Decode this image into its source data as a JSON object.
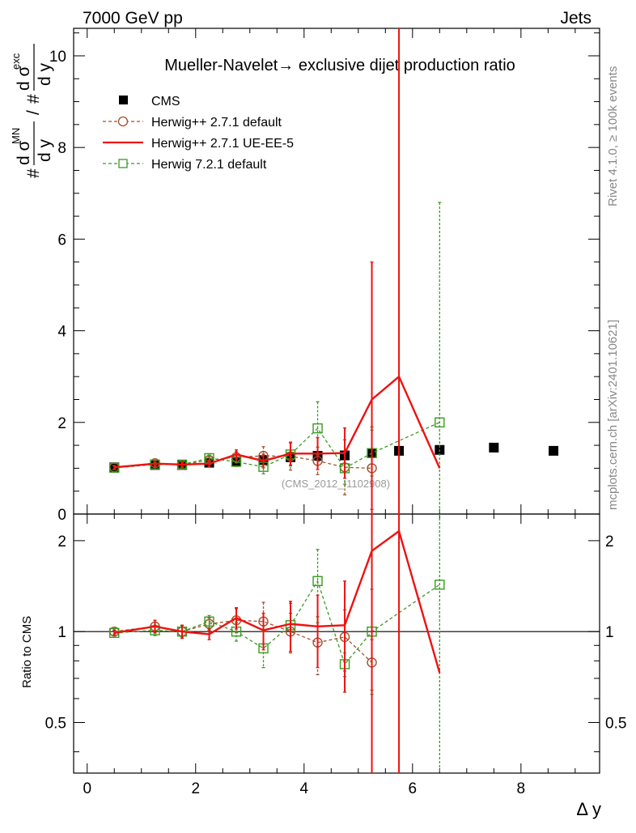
{
  "header": {
    "left": "7000 GeV pp",
    "right": "Jets"
  },
  "side_labels": {
    "rivet": "Rivet 4.1.0, ≥ 100k events",
    "mcplots": "mcplots.cern.ch [arXiv:2401.10621]"
  },
  "watermark": "(CMS_2012_I1102908)",
  "chart_data": {
    "type": "line",
    "title": "Mueller-Navelet→ exclusive dijet production ratio",
    "xlabel": "Δ y",
    "ylabel": {
      "prefix": "#",
      "mn_sup": "MN",
      "exc_sup": "exc",
      "numer": "d σ",
      "denom": "d y",
      "slash": "/"
    },
    "ratio_ylabel": "Ratio to CMS",
    "xlim": [
      -0.25,
      9.45
    ],
    "ylim": [
      0,
      10.6
    ],
    "ratio_ylim": [
      0.34,
      2.45
    ],
    "x_ticks": [
      "0",
      "2",
      "4",
      "6",
      "8"
    ],
    "y_ticks": [
      "0",
      "2",
      "4",
      "6",
      "8",
      "10"
    ],
    "ratio_ticks": [
      "0.5",
      "1",
      "2"
    ],
    "colors": {
      "cms": "#000000",
      "herwig271": "#a0522d",
      "ueee5": "#ee1111",
      "herwig721": "#3a9b1f"
    },
    "legend": [
      "CMS",
      "Herwig++ 2.7.1 default",
      "Herwig++ 2.7.1 UE-EE-5",
      "Herwig 7.2.1 default"
    ],
    "series": [
      {
        "name": "CMS",
        "style": "square",
        "x": [
          0.5,
          1.25,
          1.75,
          2.25,
          2.75,
          3.25,
          3.75,
          4.25,
          4.75,
          5.25,
          5.75,
          6.5,
          7.5,
          8.6
        ],
        "y": [
          1.02,
          1.07,
          1.07,
          1.12,
          1.15,
          1.18,
          1.24,
          1.27,
          1.28,
          1.33,
          1.38,
          1.4,
          1.45,
          1.38
        ]
      },
      {
        "name": "Herwig++ 2.7.1 default",
        "style": "circle",
        "x": [
          0.5,
          1.25,
          1.75,
          2.25,
          2.75,
          3.25,
          3.75,
          4.25,
          4.75,
          5.25
        ],
        "y": [
          1.02,
          1.11,
          1.07,
          1.18,
          1.24,
          1.27,
          1.26,
          1.16,
          1.02,
          1.0
        ],
        "err": [
          0.04,
          0.06,
          0.06,
          0.07,
          0.12,
          0.2,
          0.3,
          0.3,
          0.6,
          0.9
        ],
        "ratio": [
          1.0,
          1.04,
          1.0,
          1.06,
          1.09,
          1.08,
          1.0,
          0.92,
          0.96,
          0.79
        ],
        "ratio_err": [
          0.02,
          0.05,
          0.05,
          0.05,
          0.1,
          0.17,
          0.15,
          0.2,
          0.22,
          0.15
        ]
      },
      {
        "name": "Herwig++ 2.7.1 UE-EE-5",
        "style": "line",
        "x": [
          0.5,
          1.25,
          1.75,
          2.25,
          2.75,
          3.25,
          3.75,
          4.25,
          4.75,
          5.25,
          5.75,
          6.5
        ],
        "y": [
          1.02,
          1.1,
          1.08,
          1.1,
          1.3,
          1.16,
          1.32,
          1.32,
          1.33,
          2.5,
          3.0,
          1.0
        ],
        "err": [
          0.04,
          0.06,
          0.06,
          0.07,
          0.1,
          0.15,
          0.25,
          0.35,
          0.55,
          3.0,
          8.0,
          0.0
        ],
        "ratio": [
          0.99,
          1.04,
          1.0,
          0.98,
          1.11,
          1.01,
          1.06,
          1.04,
          1.05,
          1.85,
          2.15,
          0.73
        ],
        "ratio_err": [
          0.02,
          0.05,
          0.05,
          0.04,
          0.09,
          0.14,
          0.2,
          0.28,
          0.42,
          2.5,
          7.0,
          0.0
        ]
      },
      {
        "name": "Herwig 7.2.1 default",
        "style": "square-open",
        "x": [
          0.5,
          1.25,
          1.75,
          2.25,
          2.75,
          3.25,
          3.75,
          4.25,
          4.75,
          5.25,
          6.5
        ],
        "y": [
          1.01,
          1.08,
          1.08,
          1.22,
          1.14,
          1.03,
          1.3,
          1.87,
          1.0,
          1.33,
          2.0
        ],
        "err": [
          0.04,
          0.05,
          0.05,
          0.07,
          0.1,
          0.15,
          0.25,
          0.58,
          0.35,
          0.5,
          4.8
        ],
        "ratio": [
          0.99,
          1.01,
          1.0,
          1.08,
          1.0,
          0.88,
          1.05,
          1.47,
          0.78,
          1.0,
          1.43
        ],
        "ratio_err": [
          0.02,
          0.04,
          0.04,
          0.05,
          0.07,
          0.12,
          0.19,
          0.4,
          0.07,
          0.38,
          3.5
        ]
      }
    ]
  }
}
